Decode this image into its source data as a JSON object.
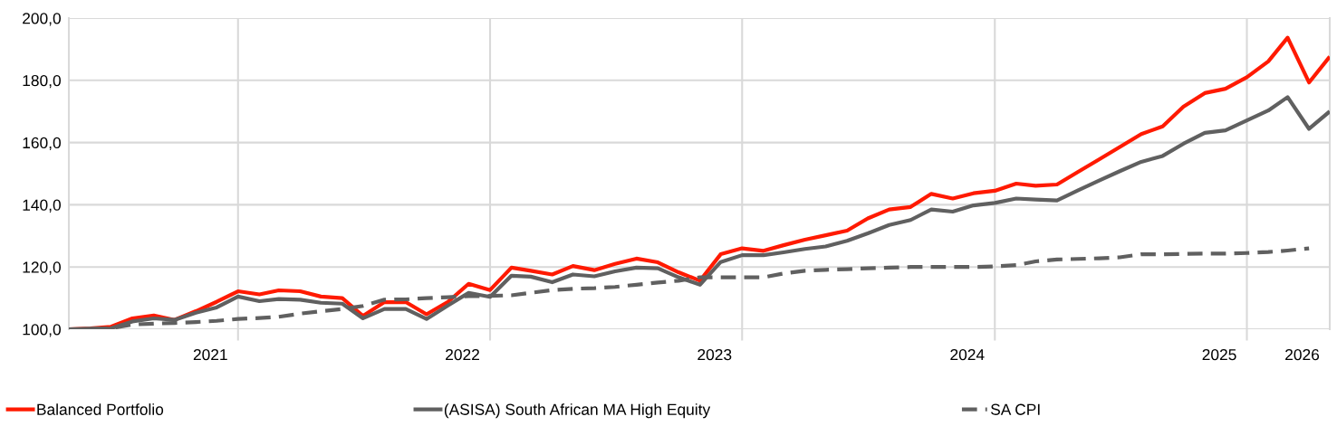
{
  "chart_data": {
    "type": "line",
    "x": [
      "2021-05",
      "2021-06",
      "2021-07",
      "2021-08",
      "2021-09",
      "2021-10",
      "2021-11",
      "2021-12",
      "2022-01",
      "2022-02",
      "2022-03",
      "2022-04",
      "2022-05",
      "2022-06",
      "2022-07",
      "2022-08",
      "2022-09",
      "2022-10",
      "2022-11",
      "2022-12",
      "2023-01",
      "2023-02",
      "2023-03",
      "2023-04",
      "2023-05",
      "2023-06",
      "2023-07",
      "2023-08",
      "2023-09",
      "2023-10",
      "2023-11",
      "2023-12",
      "2024-01",
      "2024-02",
      "2024-03",
      "2024-04",
      "2024-05",
      "2024-06",
      "2024-07",
      "2024-08",
      "2024-09",
      "2024-10",
      "2024-11",
      "2024-12",
      "2025-01",
      "2025-02",
      "2025-03",
      "2025-04",
      "2025-05",
      "2025-06",
      "2025-07",
      "2025-08",
      "2025-09",
      "2025-10",
      "2025-11",
      "2025-12",
      "2026-01",
      "2026-02",
      "2026-03",
      "2026-04",
      "2026-05"
    ],
    "series": [
      {
        "name": "Balanced Portfolio",
        "color": "#ff1a00",
        "line_style": "solid",
        "values": [
          100,
          100.3,
          100.8,
          103.5,
          104.4,
          103,
          105.8,
          108.8,
          112.2,
          111.2,
          112.5,
          112.2,
          110.5,
          110,
          104.3,
          108.7,
          108.7,
          104.8,
          108.8,
          114.6,
          112.6,
          119.8,
          118.8,
          117.6,
          120.3,
          119,
          121,
          122.7,
          121.5,
          118.3,
          115.6,
          124.1,
          126,
          125.2,
          127,
          128.8,
          130.2,
          131.7,
          135.6,
          138.5,
          139.3,
          143.5,
          142,
          143.7,
          144.5,
          146.8,
          146.1,
          146.5,
          150.5,
          154.6,
          158.6,
          162.7,
          165.2,
          171.5,
          175.9,
          177.3,
          181,
          186.1,
          193.7,
          179.3,
          187.6
        ]
      },
      {
        "name": "(ASISA) South African MA High Equity",
        "color": "#606060",
        "line_style": "solid",
        "values": [
          100,
          100.2,
          100.3,
          102.5,
          103.5,
          103,
          105.3,
          107,
          110.5,
          109,
          109.7,
          109.5,
          108.5,
          108.2,
          103.5,
          106.5,
          106.5,
          103.3,
          107.6,
          111.7,
          110.4,
          117.2,
          116.9,
          115.1,
          117.6,
          117,
          118.6,
          119.8,
          119.6,
          116.7,
          114.3,
          121.6,
          123.8,
          123.8,
          124.7,
          125.8,
          126.6,
          128.4,
          130.8,
          133.5,
          135.1,
          138.5,
          137.8,
          139.8,
          140.6,
          142,
          141.7,
          141.4,
          144.6,
          147.8,
          150.8,
          153.8,
          155.7,
          159.6,
          163.1,
          163.9,
          167.1,
          170.3,
          174.6,
          164.4,
          170
        ]
      },
      {
        "name": "SA CPI",
        "color": "#606060",
        "line_style": "dashed",
        "values": [
          100,
          100,
          100.3,
          101.5,
          101.8,
          102,
          102.3,
          102.7,
          103.3,
          103.6,
          104,
          105,
          105.8,
          106.5,
          107.5,
          109.5,
          109.6,
          110,
          110.3,
          110.6,
          110.7,
          110.9,
          111.7,
          112.6,
          113,
          113.2,
          113.6,
          114.3,
          115,
          115.6,
          116.7,
          116.7,
          116.7,
          116.7,
          117.9,
          118.8,
          119.1,
          119.3,
          119.6,
          119.8,
          120,
          120,
          120,
          120,
          120.2,
          120.6,
          121.8,
          122.4,
          122.6,
          122.8,
          123.1,
          124.1,
          124.1,
          124.2,
          124.3,
          124.3,
          124.5,
          124.8,
          125.3,
          126,
          null
        ]
      }
    ],
    "xlim": [
      "2021-05",
      "2026-05"
    ],
    "xticks": [
      {
        "value": "2021-11-22",
        "label": "2021"
      },
      {
        "value": "2022-01",
        "label": null
      },
      {
        "value": "2022-11-22",
        "label": "2022"
      },
      {
        "value": "2023-01",
        "label": null
      },
      {
        "value": "2023-11-22",
        "label": "2023"
      },
      {
        "value": "2024-01",
        "label": null
      },
      {
        "value": "2024-11-22",
        "label": "2024"
      },
      {
        "value": "2025-01",
        "label": null
      },
      {
        "value": "2025-11-22",
        "label": "2025"
      },
      {
        "value": "2026-01",
        "label": null
      },
      {
        "value": "2026-03-22",
        "label": "2026"
      }
    ],
    "ylim": [
      100,
      200
    ],
    "yticks": [
      {
        "value": 100,
        "label": "100,0"
      },
      {
        "value": 120,
        "label": "120,0"
      },
      {
        "value": 140,
        "label": "140,0"
      },
      {
        "value": 160,
        "label": "160,0"
      },
      {
        "value": 180,
        "label": "180,0"
      },
      {
        "value": 200,
        "label": "200,0"
      }
    ],
    "grid": true,
    "legend": "bottom",
    "marker": "none"
  }
}
